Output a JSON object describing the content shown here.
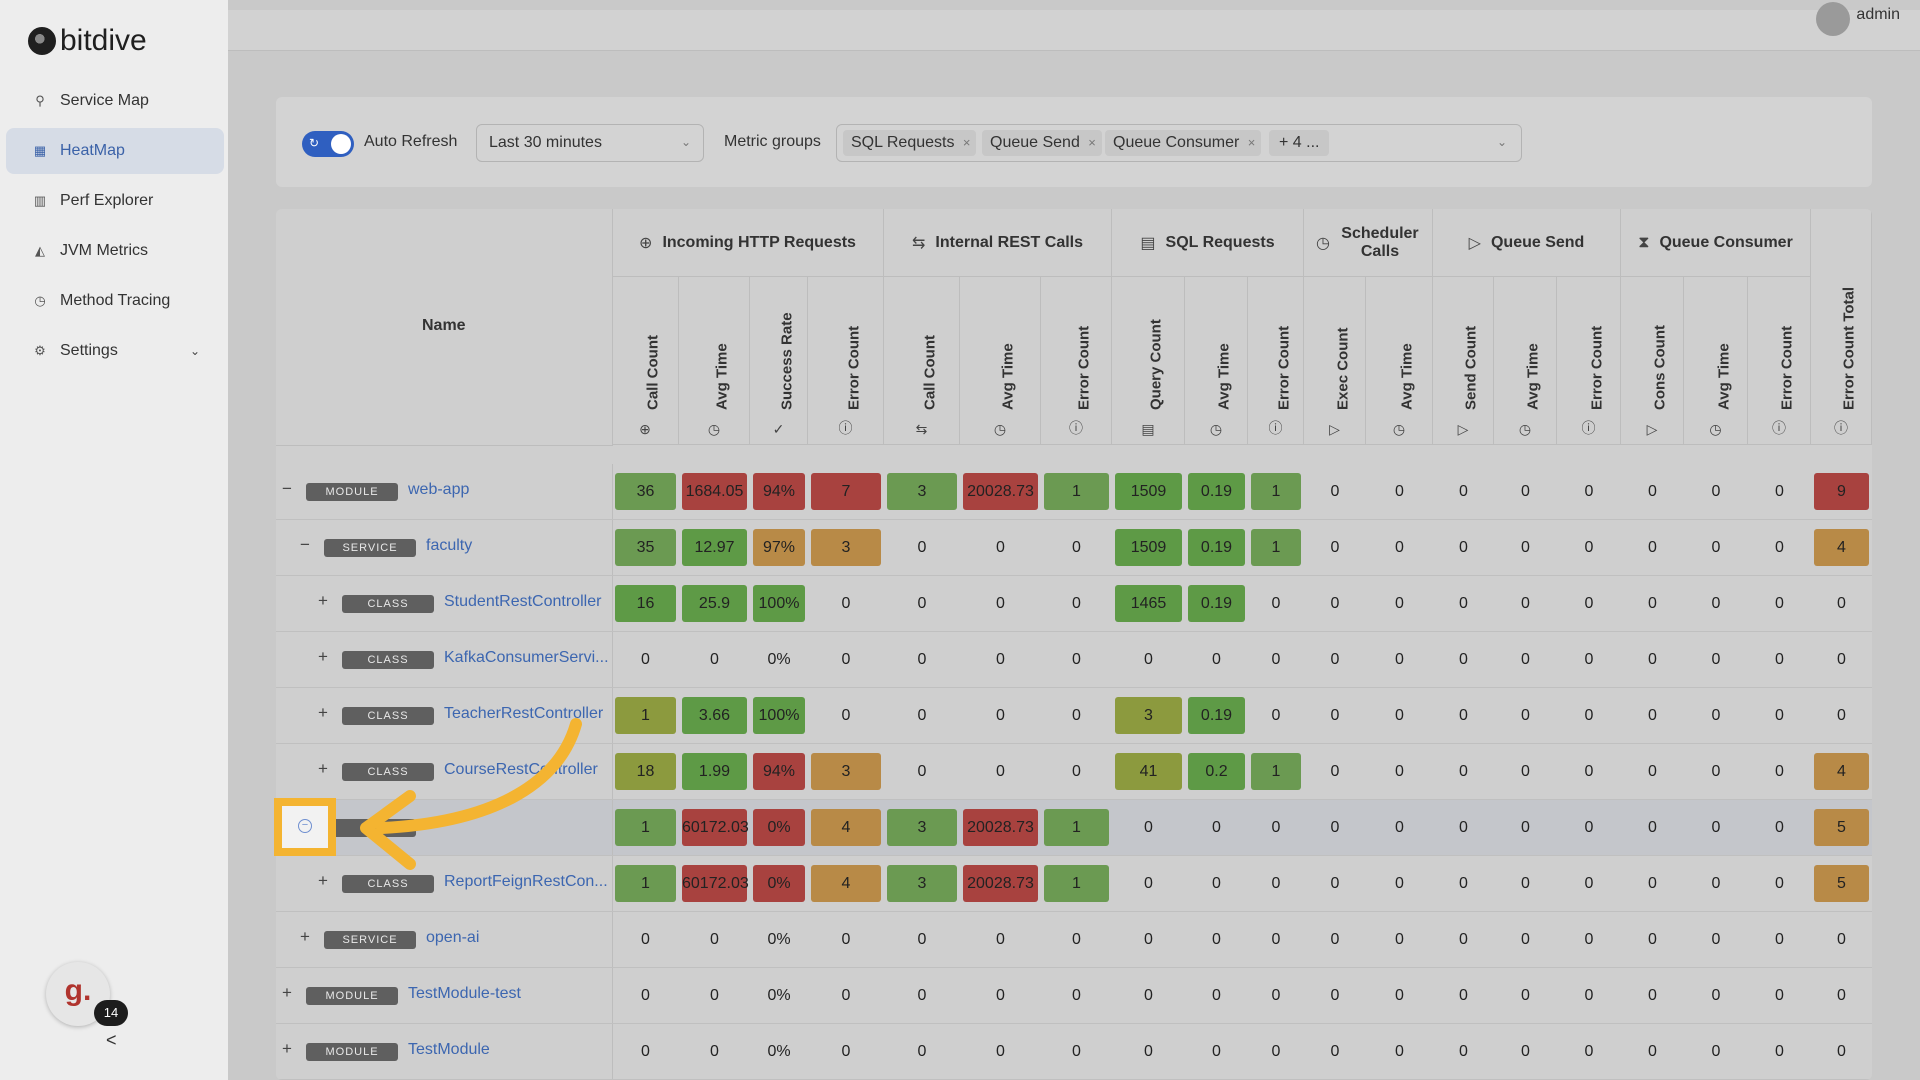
{
  "app": {
    "logo_text": "bitdive",
    "user": "admin"
  },
  "sidebar": {
    "items": [
      {
        "label": "Service Map",
        "icon": "service-map-icon"
      },
      {
        "label": "HeatMap",
        "icon": "heatmap-icon",
        "active": true
      },
      {
        "label": "Perf Explorer",
        "icon": "chart-bar-icon"
      },
      {
        "label": "JVM Metrics",
        "icon": "chart-area-icon"
      },
      {
        "label": "Method Tracing",
        "icon": "clock-icon"
      },
      {
        "label": "Settings",
        "icon": "gear-icon"
      }
    ]
  },
  "filters": {
    "auto_refresh_label": "Auto Refresh",
    "auto_refresh_on": true,
    "time_range": "Last 30 minutes",
    "metric_groups_label": "Metric groups",
    "tags": [
      "SQL Requests",
      "Queue Send",
      "Queue Consumer"
    ],
    "more": "+ 4 ..."
  },
  "table": {
    "name_header": "Name",
    "groups": [
      "Incoming HTTP Requests",
      "Internal REST Calls",
      "SQL Requests",
      "Scheduler Calls",
      "Queue Send",
      "Queue Consumer"
    ],
    "columns": [
      "Call Count",
      "Avg Time",
      "Success Rate",
      "Error Count",
      "Call Count",
      "Avg Time",
      "Error Count",
      "Query Count",
      "Avg Time",
      "Error Count",
      "Exec Count",
      "Avg Time",
      "Send Count",
      "Avg Time",
      "Error Count",
      "Cons Count",
      "Avg Time",
      "Error Count",
      "Error Count Total"
    ],
    "rows": [
      {
        "level": 0,
        "toggle": "−",
        "type": "MODULE",
        "name": "web-app",
        "values": [
          "36",
          "1684.05",
          "94%",
          "7",
          "3",
          "20028.73",
          "1",
          "1509",
          "0.19",
          "1",
          "0",
          "0",
          "0",
          "0",
          "0",
          "0",
          "0",
          "0",
          "9"
        ]
      },
      {
        "level": 1,
        "toggle": "−",
        "type": "SERVICE",
        "name": "faculty",
        "values": [
          "35",
          "12.97",
          "97%",
          "3",
          "0",
          "0",
          "0",
          "1509",
          "0.19",
          "1",
          "0",
          "0",
          "0",
          "0",
          "0",
          "0",
          "0",
          "0",
          "4"
        ]
      },
      {
        "level": 2,
        "toggle": "+",
        "type": "CLASS",
        "name": "StudentRestController",
        "values": [
          "16",
          "25.9",
          "100%",
          "0",
          "0",
          "0",
          "0",
          "1465",
          "0.19",
          "0",
          "0",
          "0",
          "0",
          "0",
          "0",
          "0",
          "0",
          "0",
          "0"
        ]
      },
      {
        "level": 2,
        "toggle": "+",
        "type": "CLASS",
        "name": "KafkaConsumerServi...",
        "values": [
          "0",
          "0",
          "0%",
          "0",
          "0",
          "0",
          "0",
          "0",
          "0",
          "0",
          "0",
          "0",
          "0",
          "0",
          "0",
          "0",
          "0",
          "0",
          "0"
        ]
      },
      {
        "level": 2,
        "toggle": "+",
        "type": "CLASS",
        "name": "TeacherRestController",
        "values": [
          "1",
          "3.66",
          "100%",
          "0",
          "0",
          "0",
          "0",
          "3",
          "0.19",
          "0",
          "0",
          "0",
          "0",
          "0",
          "0",
          "0",
          "0",
          "0",
          "0"
        ]
      },
      {
        "level": 2,
        "toggle": "+",
        "type": "CLASS",
        "name": "CourseRestController",
        "values": [
          "18",
          "1.99",
          "94%",
          "3",
          "0",
          "0",
          "0",
          "41",
          "0.2",
          "1",
          "0",
          "0",
          "0",
          "0",
          "0",
          "0",
          "0",
          "0",
          "4"
        ]
      },
      {
        "level": 1,
        "toggle": "",
        "type": "SE",
        "name": "",
        "values": [
          "1",
          "60172.03",
          "0%",
          "4",
          "3",
          "20028.73",
          "1",
          "0",
          "0",
          "0",
          "0",
          "0",
          "0",
          "0",
          "0",
          "0",
          "0",
          "0",
          "5"
        ]
      },
      {
        "level": 2,
        "toggle": "+",
        "type": "CLASS",
        "name": "ReportFeignRestCon...",
        "values": [
          "1",
          "60172.03",
          "0%",
          "4",
          "3",
          "20028.73",
          "1",
          "0",
          "0",
          "0",
          "0",
          "0",
          "0",
          "0",
          "0",
          "0",
          "0",
          "0",
          "5"
        ]
      },
      {
        "level": 1,
        "toggle": "+",
        "type": "SERVICE",
        "name": "open-ai",
        "values": [
          "0",
          "0",
          "0%",
          "0",
          "0",
          "0",
          "0",
          "0",
          "0",
          "0",
          "0",
          "0",
          "0",
          "0",
          "0",
          "0",
          "0",
          "0",
          "0"
        ]
      },
      {
        "level": 0,
        "toggle": "+",
        "type": "MODULE",
        "name": "TestModule-test",
        "values": [
          "0",
          "0",
          "0%",
          "0",
          "0",
          "0",
          "0",
          "0",
          "0",
          "0",
          "0",
          "0",
          "0",
          "0",
          "0",
          "0",
          "0",
          "0",
          "0"
        ]
      },
      {
        "level": 0,
        "toggle": "+",
        "type": "MODULE",
        "name": "TestModule",
        "values": [
          "0",
          "0",
          "0%",
          "0",
          "0",
          "0",
          "0",
          "0",
          "0",
          "0",
          "0",
          "0",
          "0",
          "0",
          "0",
          "0",
          "0",
          "0",
          "0"
        ]
      }
    ],
    "cell_colors": [
      [
        "#6b9a52",
        "#a8423f",
        "#a8423f",
        "#a8423f",
        "#6b9a52",
        "#a8423f",
        "#6b9a52",
        "#5e9a46",
        "#5e9a46",
        "#6b9a52",
        "",
        "",
        "",
        "",
        "",
        "",
        "",
        "",
        "#a8423f"
      ],
      [
        "#6b9a52",
        "#5e9a46",
        "#b88a47",
        "#b88a47",
        "",
        "",
        "",
        "#5e9a46",
        "#5e9a46",
        "#6b9a52",
        "",
        "",
        "",
        "",
        "",
        "",
        "",
        "",
        "#b88a47"
      ],
      [
        "#5e9a46",
        "#5e9a46",
        "#5e9a46",
        "",
        "",
        "",
        "",
        "#5e9a46",
        "#5e9a46",
        "",
        "",
        "",
        "",
        "",
        "",
        "",
        "",
        "",
        ""
      ],
      [
        "",
        "",
        "",
        "",
        "",
        "",
        "",
        "",
        "",
        "",
        "",
        "",
        "",
        "",
        "",
        "",
        "",
        "",
        ""
      ],
      [
        "#8c9a3e",
        "#5e9a46",
        "#5e9a46",
        "",
        "",
        "",
        "",
        "#8c9a3e",
        "#5e9a46",
        "",
        "",
        "",
        "",
        "",
        "",
        "",
        "",
        "",
        ""
      ],
      [
        "#8c9a3e",
        "#5e9a46",
        "#a8423f",
        "#b88a47",
        "",
        "",
        "",
        "#8c9a3e",
        "#5e9a46",
        "#6b9a52",
        "",
        "",
        "",
        "",
        "",
        "",
        "",
        "",
        "#b88a47"
      ],
      [
        "#6b9a52",
        "#a8423f",
        "#a8423f",
        "#b88a47",
        "#6b9a52",
        "#a8423f",
        "#6b9a52",
        "",
        "",
        "",
        "",
        "",
        "",
        "",
        "",
        "",
        "",
        "",
        "#b88a47"
      ],
      [
        "#6b9a52",
        "#a8423f",
        "#a8423f",
        "#b88a47",
        "#6b9a52",
        "#a8423f",
        "#6b9a52",
        "",
        "",
        "",
        "",
        "",
        "",
        "",
        "",
        "",
        "",
        "",
        "#b88a47"
      ],
      [
        "",
        "",
        "",
        "",
        "",
        "",
        "",
        "",
        "",
        "",
        "",
        "",
        "",
        "",
        "",
        "",
        "",
        "",
        ""
      ],
      [
        "",
        "",
        "",
        "",
        "",
        "",
        "",
        "",
        "",
        "",
        "",
        "",
        "",
        "",
        "",
        "",
        "",
        "",
        ""
      ],
      [
        "",
        "",
        "",
        "",
        "",
        "",
        "",
        "",
        "",
        "",
        "",
        "",
        "",
        "",
        "",
        "",
        "",
        "",
        ""
      ]
    ]
  },
  "chat": {
    "glyph": "g.",
    "count": "14"
  },
  "collapse_glyph": "<"
}
